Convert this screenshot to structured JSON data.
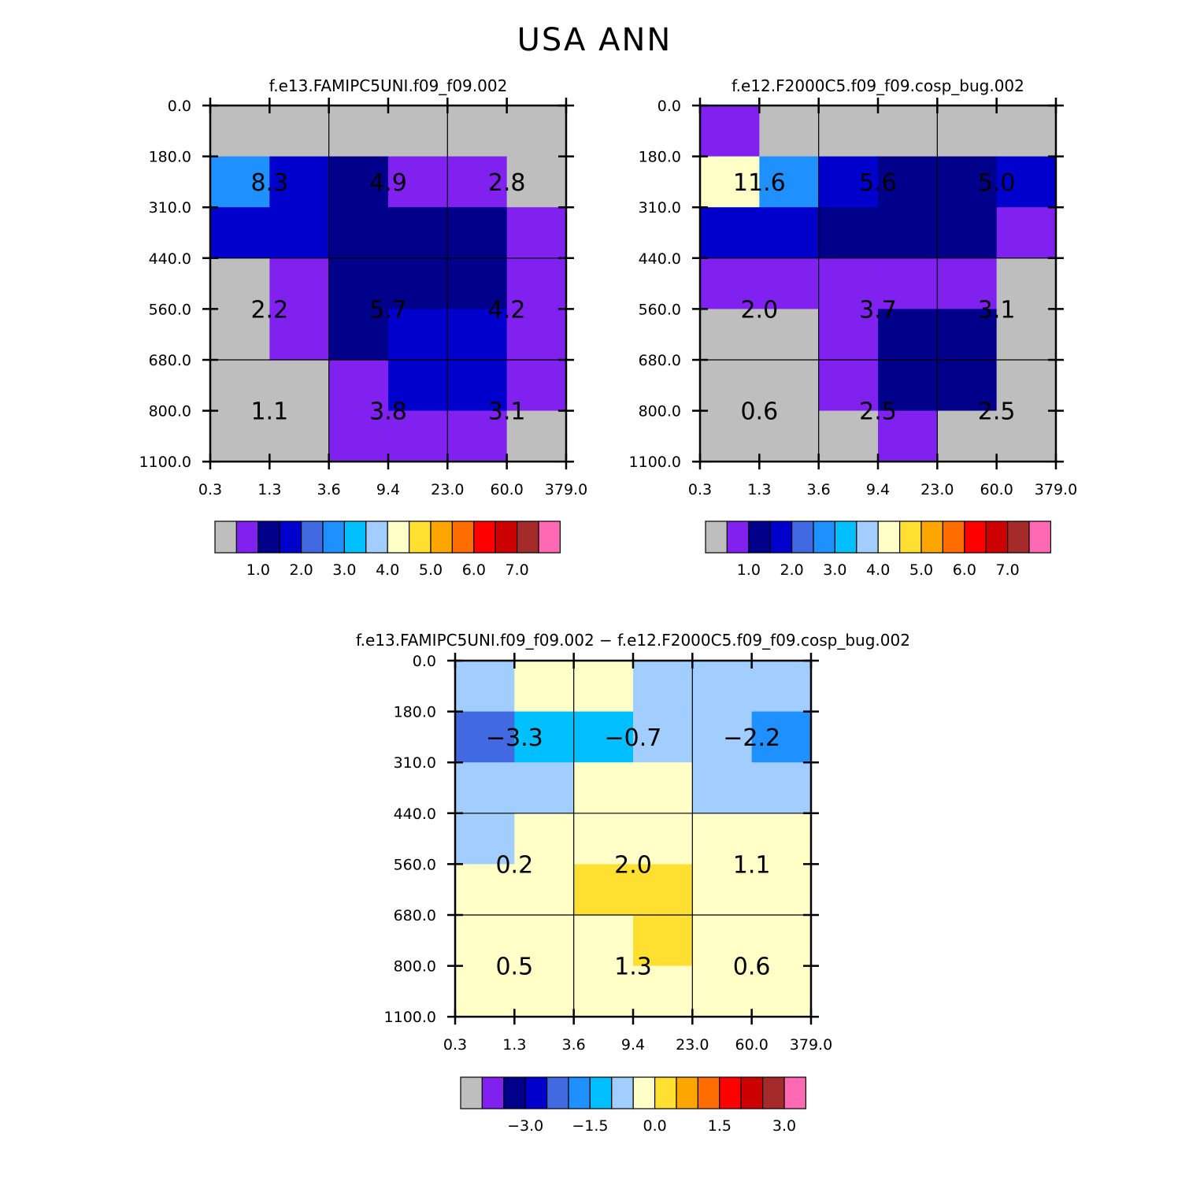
{
  "title": "USA ANN",
  "colormap": [
    "#bebebe",
    "#8021f0",
    "#00008b",
    "#0000cd",
    "#4169e1",
    "#1e90ff",
    "#00bfff",
    "#a2cdff",
    "#ffffc8",
    "#ffe030",
    "#ffa500",
    "#ff6c00",
    "#ff0000",
    "#cd0000",
    "#a52a2a",
    "#ff69b4"
  ],
  "chart_data": [
    {
      "id": "top-left",
      "type": "heatmap",
      "title": "f.e13.FAMIPC5UNI.f09_f09.002",
      "x_ticks": [
        "0.3",
        "1.3",
        "3.6",
        "9.4",
        "23.0",
        "60.0",
        "379.0"
      ],
      "y_ticks": [
        "0.0",
        "180.0",
        "310.0",
        "440.0",
        "560.0",
        "680.0",
        "800.0",
        "1100.0"
      ],
      "cells": [
        [
          0,
          0,
          0,
          0,
          0,
          0
        ],
        [
          5,
          3,
          2,
          1,
          1,
          0
        ],
        [
          3,
          3,
          2,
          2,
          2,
          1
        ],
        [
          0,
          1,
          2,
          2,
          2,
          1
        ],
        [
          0,
          1,
          2,
          3,
          3,
          1
        ],
        [
          0,
          0,
          1,
          3,
          3,
          1
        ],
        [
          0,
          0,
          1,
          1,
          1,
          0
        ]
      ],
      "annotations": [
        {
          "row": 1.5,
          "col": 1,
          "text": "8.3"
        },
        {
          "row": 1.5,
          "col": 3,
          "text": "4.9"
        },
        {
          "row": 1.5,
          "col": 5,
          "text": "2.8"
        },
        {
          "row": 4,
          "col": 1,
          "text": "2.2"
        },
        {
          "row": 4,
          "col": 3,
          "text": "5.7"
        },
        {
          "row": 4,
          "col": 5,
          "text": "4.2"
        },
        {
          "row": 6,
          "col": 1,
          "text": "1.1"
        },
        {
          "row": 6,
          "col": 3,
          "text": "3.8"
        },
        {
          "row": 6,
          "col": 5,
          "text": "3.1"
        }
      ],
      "colorbar_labels": [
        "1.0",
        "2.0",
        "3.0",
        "4.0",
        "5.0",
        "6.0",
        "7.0"
      ]
    },
    {
      "id": "top-right",
      "type": "heatmap",
      "title": "f.e12.F2000C5.f09_f09.cosp_bug.002",
      "x_ticks": [
        "0.3",
        "1.3",
        "3.6",
        "9.4",
        "23.0",
        "60.0",
        "379.0"
      ],
      "y_ticks": [
        "0.0",
        "180.0",
        "310.0",
        "440.0",
        "560.0",
        "680.0",
        "800.0",
        "1100.0"
      ],
      "cells": [
        [
          1,
          0,
          0,
          0,
          0,
          0
        ],
        [
          8,
          5,
          3,
          2,
          2,
          3
        ],
        [
          3,
          3,
          2,
          2,
          2,
          1
        ],
        [
          1,
          1,
          1,
          1,
          1,
          0
        ],
        [
          0,
          0,
          1,
          2,
          2,
          0
        ],
        [
          0,
          0,
          1,
          2,
          2,
          0
        ],
        [
          0,
          0,
          0,
          1,
          0,
          0
        ]
      ],
      "annotations": [
        {
          "row": 1.5,
          "col": 1,
          "text": "11.6"
        },
        {
          "row": 1.5,
          "col": 3,
          "text": "5.6"
        },
        {
          "row": 1.5,
          "col": 5,
          "text": "5.0"
        },
        {
          "row": 4,
          "col": 1,
          "text": "2.0"
        },
        {
          "row": 4,
          "col": 3,
          "text": "3.7"
        },
        {
          "row": 4,
          "col": 5,
          "text": "3.1"
        },
        {
          "row": 6,
          "col": 1,
          "text": "0.6"
        },
        {
          "row": 6,
          "col": 3,
          "text": "2.5"
        },
        {
          "row": 6,
          "col": 5,
          "text": "2.5"
        }
      ],
      "colorbar_labels": [
        "1.0",
        "2.0",
        "3.0",
        "4.0",
        "5.0",
        "6.0",
        "7.0"
      ]
    },
    {
      "id": "bottom-diff",
      "type": "heatmap",
      "title": "f.e13.FAMIPC5UNI.f09_f09.002 − f.e12.F2000C5.f09_f09.cosp_bug.002",
      "x_ticks": [
        "0.3",
        "1.3",
        "3.6",
        "9.4",
        "23.0",
        "60.0",
        "379.0"
      ],
      "y_ticks": [
        "0.0",
        "180.0",
        "310.0",
        "440.0",
        "560.0",
        "680.0",
        "800.0",
        "1100.0"
      ],
      "cells": [
        [
          7,
          8,
          8,
          7,
          7,
          7
        ],
        [
          4,
          6,
          6,
          7,
          7,
          5
        ],
        [
          7,
          7,
          8,
          8,
          7,
          7
        ],
        [
          7,
          8,
          8,
          8,
          8,
          8
        ],
        [
          8,
          8,
          9,
          9,
          8,
          8
        ],
        [
          8,
          8,
          8,
          9,
          8,
          8
        ],
        [
          8,
          8,
          8,
          8,
          8,
          8
        ]
      ],
      "annotations": [
        {
          "row": 1.5,
          "col": 1,
          "text": "−3.3"
        },
        {
          "row": 1.5,
          "col": 3,
          "text": "−0.7"
        },
        {
          "row": 1.5,
          "col": 5,
          "text": "−2.2"
        },
        {
          "row": 4,
          "col": 1,
          "text": "0.2"
        },
        {
          "row": 4,
          "col": 3,
          "text": "2.0"
        },
        {
          "row": 4,
          "col": 5,
          "text": "1.1"
        },
        {
          "row": 6,
          "col": 1,
          "text": "0.5"
        },
        {
          "row": 6,
          "col": 3,
          "text": "1.3"
        },
        {
          "row": 6,
          "col": 5,
          "text": "0.6"
        }
      ],
      "colorbar_labels": [
        "−3.0",
        "−1.5",
        "0.0",
        "1.5",
        "3.0"
      ]
    }
  ]
}
